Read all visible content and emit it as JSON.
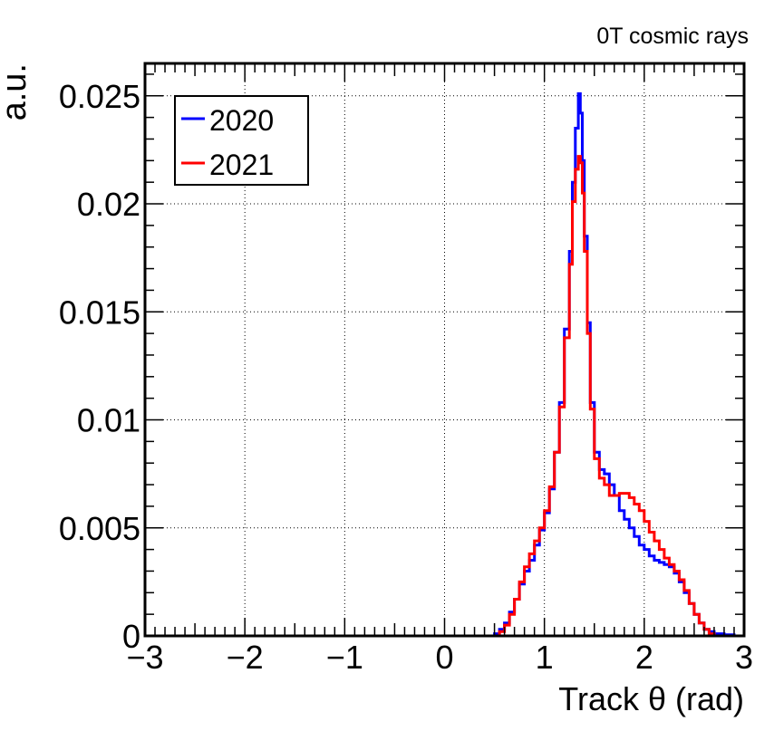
{
  "chart_data": {
    "type": "line",
    "title": "0T cosmic rays",
    "xlabel": "Track θ (rad)",
    "ylabel": "a.u.",
    "xlim": [
      -3,
      3
    ],
    "ylim": [
      0,
      0.0265
    ],
    "xticks": [
      -3,
      -2,
      -1,
      0,
      1,
      2,
      3
    ],
    "xtick_labels": [
      "−3",
      "−2",
      "−1",
      "0",
      "1",
      "2",
      "3"
    ],
    "yticks": [
      0,
      0.005,
      0.01,
      0.015,
      0.02,
      0.025
    ],
    "ytick_labels": [
      "0",
      "0.005",
      "0.01",
      "0.015",
      "0.02",
      "0.025"
    ],
    "grid": true,
    "legend_position": "top-left",
    "series": [
      {
        "name": "2020",
        "color": "#0000ff",
        "x": [
          -3.0,
          0.45,
          0.5,
          0.55,
          0.6,
          0.65,
          0.7,
          0.75,
          0.8,
          0.85,
          0.9,
          0.95,
          1.0,
          1.05,
          1.1,
          1.15,
          1.2,
          1.25,
          1.28,
          1.31,
          1.34,
          1.36,
          1.38,
          1.4,
          1.43,
          1.46,
          1.5,
          1.55,
          1.6,
          1.65,
          1.7,
          1.75,
          1.8,
          1.85,
          1.9,
          1.95,
          2.0,
          2.05,
          2.1,
          2.15,
          2.2,
          2.25,
          2.3,
          2.35,
          2.4,
          2.45,
          2.5,
          2.55,
          2.6,
          2.65,
          2.7,
          2.8,
          2.9,
          3.0
        ],
        "y": [
          0.0,
          0.0,
          0.0001,
          0.0003,
          0.0006,
          0.0011,
          0.0017,
          0.0024,
          0.003,
          0.0035,
          0.0042,
          0.0049,
          0.0057,
          0.0068,
          0.0085,
          0.0108,
          0.0142,
          0.0178,
          0.021,
          0.0235,
          0.0251,
          0.0242,
          0.022,
          0.0185,
          0.0145,
          0.0108,
          0.0085,
          0.0077,
          0.0075,
          0.007,
          0.0065,
          0.0058,
          0.0054,
          0.005,
          0.0046,
          0.0042,
          0.004,
          0.0037,
          0.0035,
          0.0034,
          0.0033,
          0.0032,
          0.0029,
          0.0025,
          0.002,
          0.0015,
          0.001,
          0.0006,
          0.0003,
          0.0002,
          0.0001,
          5e-05,
          0.0,
          0.0
        ]
      },
      {
        "name": "2021",
        "color": "#ff0000",
        "x": [
          -3.0,
          0.5,
          0.55,
          0.6,
          0.65,
          0.7,
          0.75,
          0.8,
          0.85,
          0.9,
          0.95,
          1.0,
          1.05,
          1.1,
          1.15,
          1.2,
          1.25,
          1.28,
          1.31,
          1.34,
          1.36,
          1.38,
          1.4,
          1.43,
          1.46,
          1.5,
          1.55,
          1.6,
          1.65,
          1.7,
          1.75,
          1.8,
          1.85,
          1.9,
          1.95,
          2.0,
          2.05,
          2.1,
          2.15,
          2.2,
          2.25,
          2.3,
          2.35,
          2.4,
          2.45,
          2.5,
          2.55,
          2.6,
          2.65,
          2.7,
          3.0
        ],
        "y": [
          0.0,
          0.0,
          0.0002,
          0.0005,
          0.001,
          0.0017,
          0.0025,
          0.0032,
          0.0038,
          0.0044,
          0.005,
          0.0058,
          0.0069,
          0.0085,
          0.0106,
          0.0138,
          0.0172,
          0.0201,
          0.0216,
          0.0222,
          0.0219,
          0.0205,
          0.0178,
          0.014,
          0.0105,
          0.0082,
          0.0073,
          0.007,
          0.0065,
          0.0065,
          0.0066,
          0.0066,
          0.0064,
          0.0061,
          0.0058,
          0.0053,
          0.0048,
          0.0044,
          0.004,
          0.0036,
          0.0033,
          0.003,
          0.0026,
          0.0021,
          0.0015,
          0.001,
          0.0006,
          0.0003,
          0.0001,
          0.0,
          0.0
        ]
      }
    ]
  }
}
